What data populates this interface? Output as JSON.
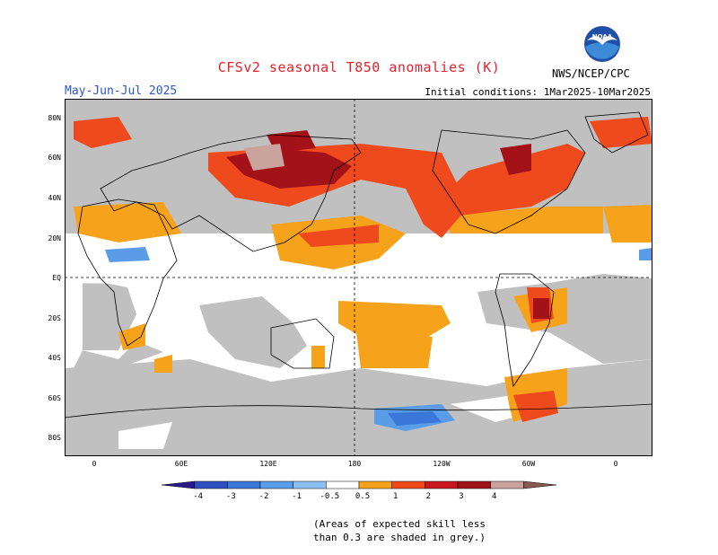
{
  "title": "CFSv2 seasonal T850 anomalies (K)",
  "period": "May-Jun-Jul 2025",
  "initial_conditions": "Initial conditions: 1Mar2025-10Mar2025",
  "agency": "NWS/NCEP/CPC",
  "logo_text": "NOAA",
  "lat_labels": [
    "80N",
    "60N",
    "40N",
    "20N",
    "EQ",
    "20S",
    "40S",
    "60S",
    "80S"
  ],
  "lon_labels": [
    "0",
    "60E",
    "120E",
    "180",
    "120W",
    "60W",
    "0"
  ],
  "colorbar": {
    "ticks": [
      "-4",
      "-3",
      "-2",
      "-1",
      "-0.5",
      "0.5",
      "1",
      "2",
      "3",
      "4"
    ],
    "colors": [
      "#2a1a8c",
      "#2d4fc0",
      "#3a77d8",
      "#5a9ce8",
      "#8cc0f2",
      "#ffffff",
      "#f7a21b",
      "#f04a1a",
      "#c8171e",
      "#9e1418",
      "#c9a39c",
      "#8a5a52"
    ]
  },
  "caption": [
    "(Areas of expected skill less",
    "than 0.3 are shaded in grey.)"
  ],
  "colors": {
    "grey": "#c0c0c0",
    "orange": "#f7a21b",
    "red": "#ef4a1e",
    "darkred": "#a31219",
    "rose": "#c9a39c",
    "lightblue": "#5a9ce8",
    "blue": "#3a77d8"
  }
}
